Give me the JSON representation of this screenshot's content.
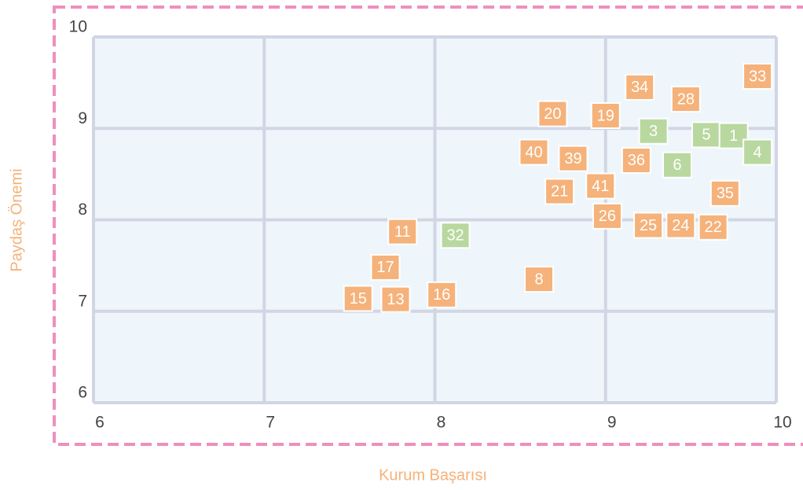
{
  "chart_data": {
    "type": "scatter",
    "x_label": "Kurum Başarısı",
    "y_label": "Paydaş Önemi",
    "xlim": [
      6,
      10
    ],
    "ylim": [
      6,
      10
    ],
    "xticks": [
      6,
      7,
      8,
      9,
      10
    ],
    "yticks": [
      6,
      7,
      8,
      9,
      10
    ],
    "grid": true,
    "series": [
      {
        "color": "#f5b27a",
        "labels": [
          "33",
          "34",
          "28",
          "20",
          "19",
          "40",
          "39",
          "36",
          "41",
          "21",
          "35",
          "26",
          "25",
          "24",
          "22",
          "11",
          "17",
          "8",
          "16",
          "15",
          "13"
        ],
        "x": [
          9.89,
          9.2,
          9.47,
          8.69,
          9.0,
          8.58,
          8.81,
          9.18,
          8.97,
          8.73,
          9.7,
          9.01,
          9.25,
          9.44,
          9.63,
          7.81,
          7.71,
          8.61,
          8.04,
          7.55,
          7.77
        ],
        "values": [
          9.57,
          9.45,
          9.32,
          9.16,
          9.14,
          8.74,
          8.67,
          8.65,
          8.37,
          8.31,
          8.29,
          8.04,
          7.94,
          7.94,
          7.92,
          7.87,
          7.48,
          7.35,
          7.18,
          7.14,
          7.13
        ]
      },
      {
        "color": "#b9d89f",
        "labels": [
          "3",
          "5",
          "1",
          "4",
          "6",
          "32"
        ],
        "x": [
          9.28,
          9.59,
          9.75,
          9.89,
          9.42,
          8.12
        ],
        "values": [
          8.97,
          8.93,
          8.92,
          8.74,
          8.6,
          7.83
        ]
      }
    ]
  }
}
